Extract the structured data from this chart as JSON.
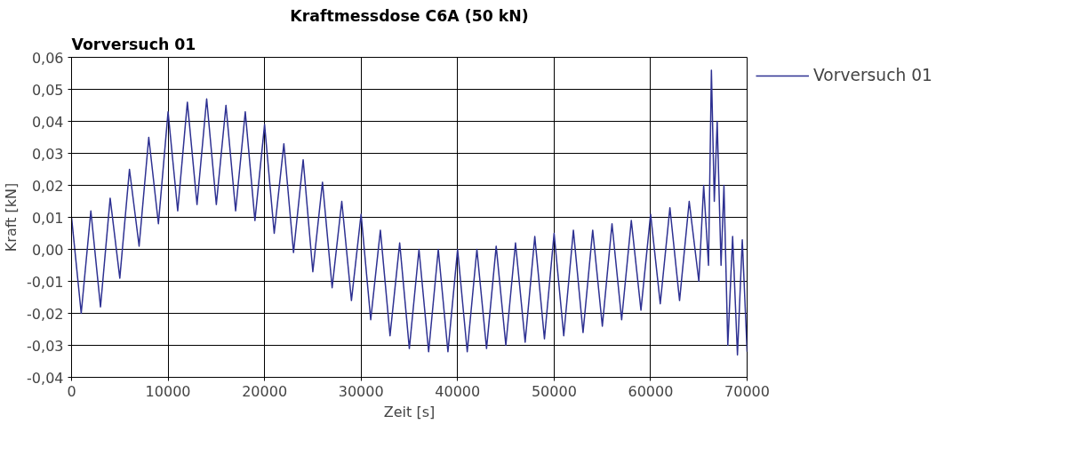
{
  "chart_data": {
    "type": "line",
    "title": "Kraftmessdose C6A (50 kN)",
    "subtitle": "Vorversuch 01",
    "xlabel": "Zeit [s]",
    "ylabel": "Kraft [kN]",
    "x": [
      0,
      1000,
      2000,
      3000,
      4000,
      5000,
      6000,
      7000,
      8000,
      9000,
      10000,
      11000,
      12000,
      13000,
      14000,
      15000,
      16000,
      17000,
      18000,
      19000,
      20000,
      21000,
      22000,
      23000,
      24000,
      25000,
      26000,
      27000,
      28000,
      29000,
      30000,
      31000,
      32000,
      33000,
      34000,
      35000,
      36000,
      37000,
      38000,
      39000,
      40000,
      41000,
      42000,
      43000,
      44000,
      45000,
      46000,
      47000,
      48000,
      49000,
      50000,
      51000,
      52000,
      53000,
      54000,
      55000,
      56000,
      57000,
      58000,
      59000,
      60000,
      61000,
      62000,
      63000,
      64000,
      65000,
      65500,
      66000,
      66300,
      66600,
      66900,
      67300,
      67600,
      68000,
      68500,
      69000,
      69500,
      70000
    ],
    "series": [
      {
        "name": "Vorversuch 01",
        "color": "#2e3192",
        "values": [
          0.01,
          -0.02,
          0.012,
          -0.018,
          0.016,
          -0.009,
          0.025,
          0.001,
          0.035,
          0.008,
          0.043,
          0.012,
          0.046,
          0.014,
          0.047,
          0.014,
          0.045,
          0.012,
          0.043,
          0.009,
          0.039,
          0.005,
          0.033,
          -0.001,
          0.028,
          -0.007,
          0.021,
          -0.012,
          0.015,
          -0.016,
          0.011,
          -0.022,
          0.006,
          -0.027,
          0.002,
          -0.031,
          0.0,
          -0.032,
          0.0,
          -0.032,
          0.0,
          -0.032,
          0.0,
          -0.031,
          0.001,
          -0.03,
          0.002,
          -0.029,
          0.004,
          -0.028,
          0.005,
          -0.027,
          0.006,
          -0.026,
          0.006,
          -0.024,
          0.008,
          -0.022,
          0.009,
          -0.019,
          0.011,
          -0.017,
          0.013,
          -0.016,
          0.015,
          -0.01,
          0.02,
          -0.005,
          0.056,
          0.015,
          0.04,
          -0.005,
          0.02,
          -0.03,
          0.004,
          -0.033,
          0.003,
          -0.032
        ]
      }
    ],
    "xlim": [
      0,
      70000
    ],
    "ylim": [
      -0.04,
      0.06
    ],
    "xticks": [
      0,
      10000,
      20000,
      30000,
      40000,
      50000,
      60000,
      70000
    ],
    "yticks": [
      {
        "value": -0.04,
        "label": "-0,04"
      },
      {
        "value": -0.03,
        "label": "-0,03"
      },
      {
        "value": -0.02,
        "label": "-0,02"
      },
      {
        "value": -0.01,
        "label": "-0,01"
      },
      {
        "value": 0,
        "label": "0,00"
      },
      {
        "value": 0.01,
        "label": "0,01"
      },
      {
        "value": 0.02,
        "label": "0,02"
      },
      {
        "value": 0.03,
        "label": "0,03"
      },
      {
        "value": 0.04,
        "label": "0,04"
      },
      {
        "value": 0.05,
        "label": "0,05"
      },
      {
        "value": 0.06,
        "label": "0,06"
      }
    ],
    "grid": true,
    "legend": "top right",
    "line_style": "solid",
    "marker": "none"
  }
}
